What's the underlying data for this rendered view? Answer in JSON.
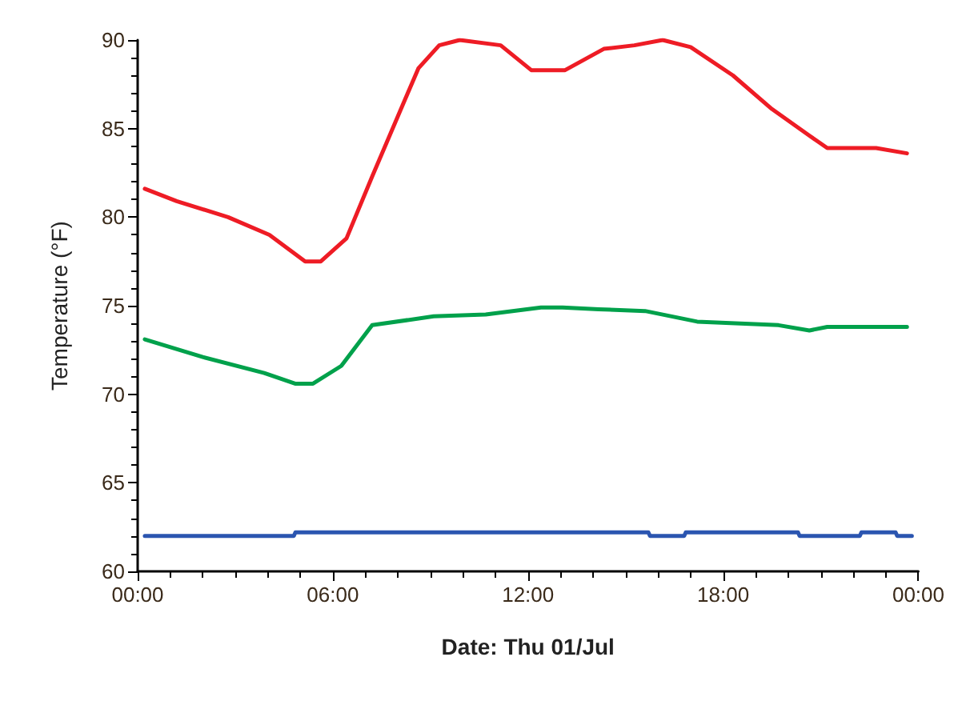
{
  "chart_data": {
    "type": "line",
    "xlabel": "Date: Thu 01/Jul",
    "ylabel": "Temperature (°F)",
    "xlim": [
      0,
      24
    ],
    "xticks": [
      {
        "value": 0,
        "label": "00:00"
      },
      {
        "value": 6,
        "label": "06:00"
      },
      {
        "value": 12,
        "label": "12:00"
      },
      {
        "value": 18,
        "label": "18:00"
      },
      {
        "value": 24,
        "label": "00:00"
      }
    ],
    "ylim": [
      60,
      90
    ],
    "yticks": [
      60,
      65,
      70,
      75,
      80,
      85,
      90
    ],
    "grid": false,
    "marker": "none",
    "line_style": "solid",
    "series": [
      {
        "color": "#ee1c25",
        "x": [
          0.22,
          1.2,
          2.78,
          4.05,
          5.15,
          5.63,
          6.42,
          7.21,
          8.0,
          8.63,
          9.27,
          9.9,
          11.16,
          12.1,
          13.14,
          14.33,
          15.27,
          16.14,
          17.0,
          18.3,
          19.5,
          20.65,
          21.2,
          22.7,
          23.65
        ],
        "values": [
          81.6,
          80.9,
          80.0,
          79.0,
          77.5,
          77.5,
          78.8,
          82.3,
          85.7,
          88.4,
          89.7,
          90.0,
          89.7,
          88.3,
          88.3,
          89.5,
          89.7,
          90.0,
          89.6,
          88.0,
          86.1,
          84.6,
          83.9,
          83.9,
          83.6
        ]
      },
      {
        "color": "#00a14b",
        "x": [
          0.22,
          2.0,
          3.89,
          4.84,
          5.39,
          6.26,
          7.21,
          9.1,
          10.7,
          12.4,
          13.06,
          14.17,
          15.6,
          17.2,
          19.7,
          20.65,
          21.2,
          23.65
        ],
        "values": [
          73.1,
          72.1,
          71.2,
          70.6,
          70.6,
          71.6,
          73.9,
          74.4,
          74.5,
          74.9,
          74.9,
          74.8,
          74.7,
          74.1,
          73.9,
          73.6,
          73.8,
          73.8
        ]
      },
      {
        "color": "#2b55b0",
        "x": [
          0.22,
          4.8,
          4.85,
          15.7,
          15.75,
          16.8,
          16.85,
          20.3,
          20.35,
          22.2,
          22.25,
          23.3,
          23.35,
          23.8
        ],
        "values": [
          62.0,
          62.0,
          62.2,
          62.2,
          62.0,
          62.0,
          62.2,
          62.2,
          62.0,
          62.0,
          62.2,
          62.2,
          62.0,
          62.0
        ]
      }
    ]
  }
}
